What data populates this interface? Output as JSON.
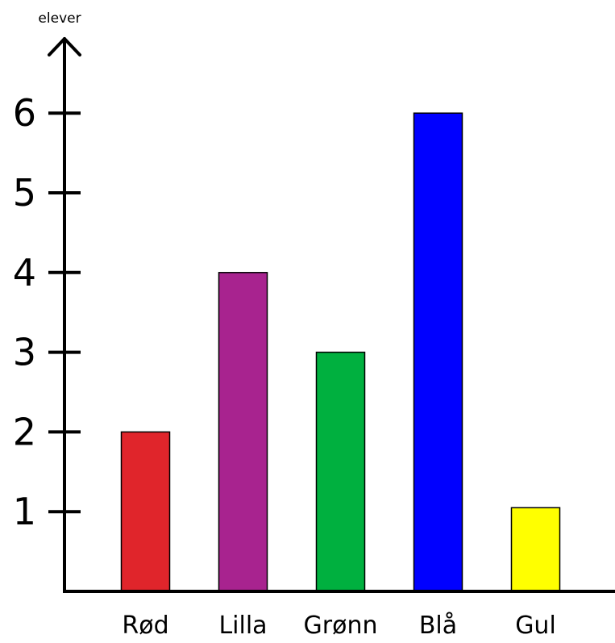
{
  "chart_data": {
    "type": "bar",
    "categories": [
      "Rød",
      "Lilla",
      "Grønn",
      "Blå",
      "Gul"
    ],
    "values": [
      2,
      4,
      3,
      6,
      1.05
    ],
    "colors": [
      "#e0252b",
      "#a8238f",
      "#00b03f",
      "#0000ff",
      "#ffff00"
    ],
    "ylabel": "elever",
    "yticks": [
      1,
      2,
      3,
      4,
      5,
      6
    ],
    "ylim": [
      0,
      6.7
    ],
    "grid": false,
    "legend": "none"
  }
}
